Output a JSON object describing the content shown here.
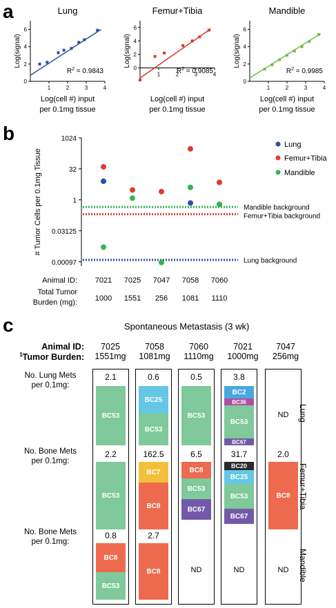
{
  "panels": {
    "a": "a",
    "b": "b",
    "c": "c"
  },
  "panel_a": {
    "plots": [
      {
        "title": "Lung",
        "color": "#2b50a8",
        "r2_label": "R",
        "r2_value": "= 0.9843"
      },
      {
        "title": "Femur+Tibia",
        "color": "#d93630",
        "r2_label": "R",
        "r2_value": "= 0.9085"
      },
      {
        "title": "Mandible",
        "color": "#6dbf45",
        "r2_label": "R",
        "r2_value": "= 0.9985"
      }
    ],
    "ylabel": "Log(signal)",
    "xlabel_line1": "Log(cell #) input",
    "xlabel_line2": "per 0.1mg tissue",
    "r2_sup": "2",
    "yticks": [
      "0",
      "2",
      "4",
      "6"
    ],
    "xticks": [
      "1",
      "2",
      "3",
      "4"
    ]
  },
  "chart_data": [
    {
      "type": "scatter",
      "title": "Lung",
      "xlabel": "Log(cell #) input per 0.1mg tissue",
      "ylabel": "Log(signal)",
      "xlim": [
        0,
        4
      ],
      "ylim": [
        0,
        7
      ],
      "x": [
        0.5,
        0.9,
        1.5,
        1.8,
        2.2,
        2.6,
        2.9,
        3.6
      ],
      "y": [
        2.0,
        2.2,
        3.3,
        3.6,
        3.8,
        4.5,
        4.8,
        5.9
      ],
      "fit": [
        [
          0,
          0.7
        ],
        [
          3.8,
          6.0
        ]
      ],
      "r2": 0.9843
    },
    {
      "type": "scatter",
      "title": "Femur+Tibia",
      "xlabel": "Log(cell #) input per 0.1mg tissue",
      "ylabel": "Log(signal)",
      "xlim": [
        0,
        4
      ],
      "ylim": [
        -2,
        7
      ],
      "x": [
        0.0,
        0.8,
        1.3,
        2.3,
        2.8,
        3.2,
        3.7
      ],
      "y": [
        -1.8,
        1.7,
        2.2,
        3.3,
        4.0,
        4.6,
        5.6
      ],
      "fit": [
        [
          0,
          -1.5
        ],
        [
          3.8,
          5.8
        ]
      ],
      "r2": 0.9085
    },
    {
      "type": "scatter",
      "title": "Mandible",
      "xlabel": "Log(cell #) input per 0.1mg tissue",
      "ylabel": "Log(signal)",
      "xlim": [
        0,
        4
      ],
      "ylim": [
        0,
        7
      ],
      "x": [
        0.8,
        1.2,
        1.6,
        2.0,
        2.4,
        2.8,
        3.2,
        3.7
      ],
      "y": [
        1.4,
        1.9,
        2.5,
        3.0,
        3.5,
        4.0,
        4.6,
        5.4
      ],
      "fit": [
        [
          0,
          0.4
        ],
        [
          3.8,
          5.5
        ]
      ],
      "r2": 0.9985
    },
    {
      "type": "scatter",
      "xlabel": "Animal ID",
      "ylabel": "# Tumor Cells per 0.1mg Tissue",
      "y_scale": "log2",
      "yticks": [
        "1024",
        "32",
        "1",
        "0.03125",
        "0.00097"
      ],
      "categories": [
        "7021",
        "7025",
        "7047",
        "7058",
        "7060"
      ],
      "total_tumor_burden_mg": [
        1000,
        1551,
        256,
        1081,
        1110
      ],
      "series": [
        {
          "name": "Lung",
          "color": "#2b50a8",
          "values": [
            8,
            null,
            null,
            0.7,
            0.6
          ]
        },
        {
          "name": "Femur+Tibia",
          "color": "#e03b30",
          "values": [
            40,
            3,
            2.5,
            300,
            7
          ]
        },
        {
          "name": "Mandible",
          "color": "#35b44a",
          "values": [
            0.005,
            1.2,
            0.0009,
            4,
            0.6
          ]
        }
      ],
      "backgrounds": [
        {
          "name": "Mandible background",
          "color": "#35b44a",
          "value": 0.45
        },
        {
          "name": "Femur+Tibia background",
          "color": "#e03b30",
          "value": 0.2
        },
        {
          "name": "Lung background",
          "color": "#2b50a8",
          "value": 0.0012
        }
      ]
    }
  ],
  "panel_b": {
    "ylabel": "# Tumor Cells per 0.1mg Tissue",
    "yticks": [
      "1024",
      "32",
      "1",
      "0.03125",
      "0.00097"
    ],
    "legend": [
      "Lung",
      "Femur+Tibia",
      "Mandible"
    ],
    "bg_labels": [
      "Mandible background",
      "Femur+Tibia background",
      "Lung background"
    ],
    "animal_id_label": "Animal ID:",
    "burden_label_1": "Total Tumor",
    "burden_label_2": "Burden (mg):",
    "ids": [
      "7021",
      "7025",
      "7047",
      "7058",
      "7060"
    ],
    "burdens": [
      "1000",
      "1551",
      "256",
      "1081",
      "1110"
    ]
  },
  "panel_c": {
    "title": "Spontaneous Metastasis (3 wk)",
    "animal_id_label": "Animal ID:",
    "burden_label_sup": "1",
    "burden_label": "Tumor Burden:",
    "row_lung_1": "No. Lung Mets",
    "row_lung_2": "per 0.1mg:",
    "row_bone_1": "No. Bone Mets",
    "row_bone_2": "per 0.1mg:",
    "row_mand_1": "No. Bone Mets",
    "row_mand_2": "per 0.1mg:",
    "side_lung": "Lung",
    "side_femur": "Femur+Tibia",
    "side_mand": "Mandible",
    "nd": "ND",
    "columns": [
      {
        "id": "7025",
        "burden": "1551mg",
        "lung": "2.1",
        "bone": "2.2",
        "mand": "0.8"
      },
      {
        "id": "7058",
        "burden": "1081mg",
        "lung": "0.6",
        "bone": "162.5",
        "mand": "2.7"
      },
      {
        "id": "7060",
        "burden": "1110mg",
        "lung": "0.5",
        "bone": "6.5",
        "mand": ""
      },
      {
        "id": "7021",
        "burden": "1000mg",
        "lung": "3.8",
        "bone": "31.7",
        "mand": ""
      },
      {
        "id": "7047",
        "burden": "256mg",
        "lung": "",
        "bone": "2.0",
        "mand": ""
      }
    ],
    "labels": {
      "bc53": "BC53",
      "bc25": "BC25",
      "bc2": "BC2",
      "bc36": "BC36",
      "bc67": "BC67",
      "bc7": "BC7",
      "bc8": "BC8",
      "bc20": "BC20"
    },
    "colors": {
      "bc53": "#7fc99a",
      "bc25": "#64c8e4",
      "bc2": "#4aa8e0",
      "bc36": "#b04fa2",
      "bc67": "#7359a8",
      "bc7": "#f2c03a",
      "bc8": "#ee6a4f",
      "bc20": "#2a2a2a"
    }
  }
}
